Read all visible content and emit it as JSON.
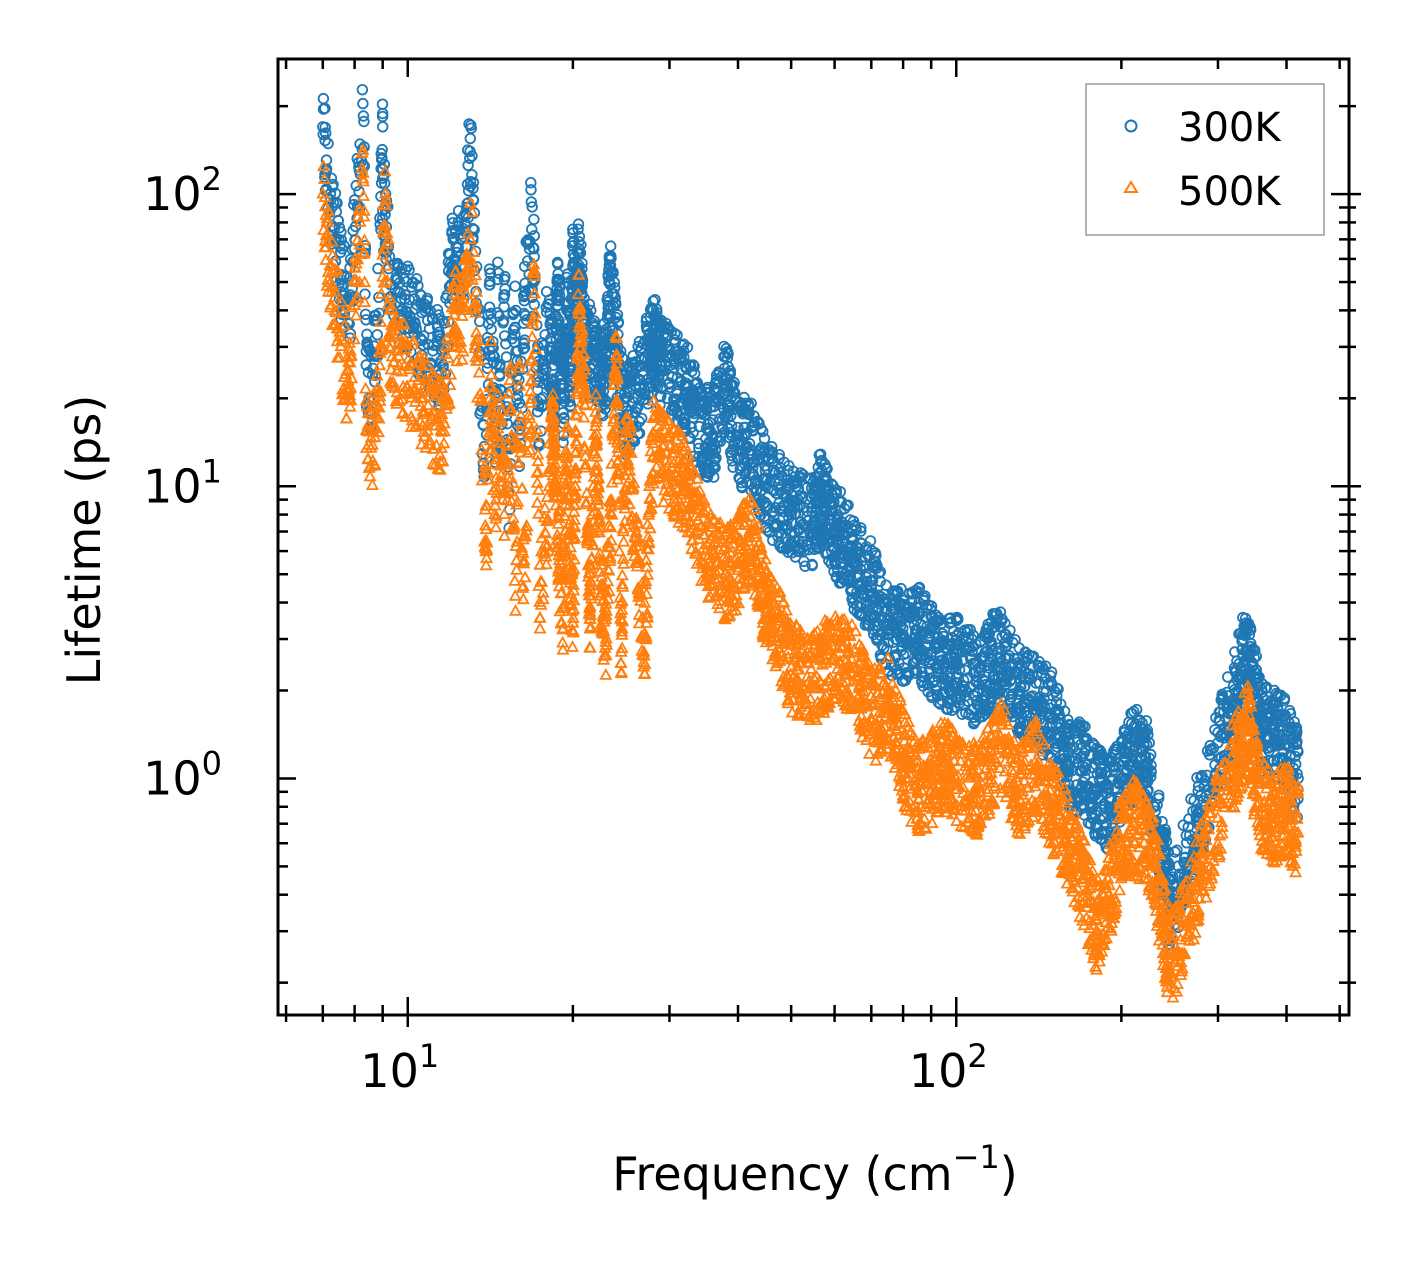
{
  "chart_data": {
    "type": "scatter",
    "title": "",
    "xlabel": "Frequency (cm",
    "xlabel_sup": "−1",
    "xlabel_end": ")",
    "ylabel": "Lifetime (ps)",
    "xscale": "log",
    "yscale": "log",
    "xlim": [
      5.8,
      520
    ],
    "ylim": [
      0.155,
      290
    ],
    "x_ticks": [
      {
        "value": 10,
        "base": "10",
        "exp": "1"
      },
      {
        "value": 100,
        "base": "10",
        "exp": "2"
      }
    ],
    "y_ticks": [
      {
        "value": 1,
        "base": "10",
        "exp": "0"
      },
      {
        "value": 10,
        "base": "10",
        "exp": "1"
      },
      {
        "value": 100,
        "base": "10",
        "exp": "2"
      }
    ],
    "legend_position": "top-right",
    "series": [
      {
        "name": "300K",
        "color": "#1f77b4",
        "marker": "circle",
        "points": [
          [
            7.0,
            170
          ],
          [
            7.1,
            120
          ],
          [
            7.8,
            36
          ],
          [
            8.3,
            185
          ],
          [
            8.4,
            26
          ],
          [
            8.5,
            20
          ],
          [
            8.8,
            33
          ],
          [
            9.0,
            170
          ],
          [
            9.0,
            88
          ],
          [
            9.1,
            89
          ],
          [
            9.3,
            49
          ],
          [
            11.6,
            26
          ],
          [
            12.1,
            70
          ],
          [
            12.2,
            55
          ],
          [
            12.5,
            70
          ],
          [
            12.7,
            61
          ],
          [
            12.8,
            90
          ],
          [
            13.0,
            155
          ],
          [
            13.8,
            11
          ],
          [
            14.1,
            41
          ],
          [
            14.3,
            28
          ],
          [
            14.5,
            13
          ],
          [
            14.6,
            51
          ],
          [
            14.8,
            13.5
          ],
          [
            15.0,
            51
          ],
          [
            15.2,
            13.5
          ],
          [
            15.3,
            7.2
          ],
          [
            15.5,
            32
          ],
          [
            15.7,
            35
          ],
          [
            16.0,
            15
          ],
          [
            16.3,
            39
          ],
          [
            16.8,
            94
          ],
          [
            17.0,
            61
          ],
          [
            16.9,
            51
          ],
          [
            17.3,
            19
          ],
          [
            17.6,
            24
          ],
          [
            17.8,
            33
          ],
          [
            18.2,
            30
          ],
          [
            18.5,
            21
          ],
          [
            18.8,
            51
          ],
          [
            19.2,
            20
          ],
          [
            19.5,
            40
          ],
          [
            19.8,
            25
          ],
          [
            20.0,
            57
          ],
          [
            20.3,
            35
          ],
          [
            20.5,
            65
          ],
          [
            21.0,
            30
          ],
          [
            22.0,
            28
          ],
          [
            22.6,
            23
          ],
          [
            23.0,
            27
          ],
          [
            23.4,
            49
          ],
          [
            24.0,
            29
          ],
          [
            25.0,
            17
          ],
          [
            26.5,
            22
          ],
          [
            28.0,
            32
          ],
          [
            28.5,
            29
          ],
          [
            29.0,
            26
          ],
          [
            32.0,
            22
          ],
          [
            34.0,
            16
          ],
          [
            36.0,
            15
          ],
          [
            38.0,
            22
          ],
          [
            40.0,
            14
          ],
          [
            42.0,
            14
          ],
          [
            45.0,
            10
          ],
          [
            50.0,
            8
          ],
          [
            55.0,
            7.5
          ],
          [
            56.0,
            8.8
          ],
          [
            57.0,
            9.1
          ],
          [
            58.0,
            8.2
          ],
          [
            60.0,
            7.0
          ],
          [
            62.0,
            6.5
          ],
          [
            65.0,
            5.5
          ],
          [
            70.0,
            4.5
          ],
          [
            75.0,
            3.2
          ],
          [
            80.0,
            3.1
          ],
          [
            85.0,
            3.2
          ],
          [
            90.0,
            2.7
          ],
          [
            95.0,
            2.4
          ],
          [
            100.0,
            2.5
          ],
          [
            110.0,
            2.1
          ],
          [
            115.0,
            2.5
          ],
          [
            120.0,
            2.6
          ],
          [
            130.0,
            2.0
          ],
          [
            140.0,
            1.8
          ],
          [
            150.0,
            1.6
          ],
          [
            160.0,
            1.1
          ],
          [
            170.0,
            1.1
          ],
          [
            180.0,
            0.9
          ],
          [
            190.0,
            0.8
          ],
          [
            200.0,
            1.0
          ],
          [
            210.0,
            1.2
          ],
          [
            220.0,
            1.2
          ],
          [
            230.0,
            0.8
          ],
          [
            240.0,
            0.5
          ],
          [
            245.0,
            0.35
          ],
          [
            320.0,
            1.8
          ],
          [
            330.0,
            2.4
          ],
          [
            340.0,
            2.6
          ],
          [
            350.0,
            2.0
          ],
          [
            360.0,
            1.5
          ],
          [
            380.0,
            1.4
          ],
          [
            400.0,
            1.3
          ],
          [
            420.0,
            1.0
          ]
        ]
      },
      {
        "name": "500K",
        "color": "#ff7f0e",
        "marker": "triangle",
        "points": [
          [
            7.0,
            100
          ],
          [
            7.1,
            72
          ],
          [
            7.8,
            21
          ],
          [
            8.3,
            110
          ],
          [
            8.4,
            15.5
          ],
          [
            8.5,
            11.5
          ],
          [
            8.9,
            19.5
          ],
          [
            9.0,
            52
          ],
          [
            9.1,
            100
          ],
          [
            9.3,
            29.5
          ],
          [
            11.5,
            15.5
          ],
          [
            12.2,
            41
          ],
          [
            12.4,
            33
          ],
          [
            12.6,
            40
          ],
          [
            12.8,
            52
          ],
          [
            13.0,
            93
          ],
          [
            13.9,
            6.5
          ],
          [
            14.0,
            10.5
          ],
          [
            14.2,
            24
          ],
          [
            14.4,
            8
          ],
          [
            14.6,
            15
          ],
          [
            14.9,
            12.5
          ],
          [
            15.0,
            8
          ],
          [
            15.4,
            18
          ],
          [
            15.7,
            4.2
          ],
          [
            16.0,
            22
          ],
          [
            16.2,
            5.5
          ],
          [
            16.4,
            6.7
          ],
          [
            16.8,
            23
          ],
          [
            17.0,
            55
          ],
          [
            17.4,
            4
          ],
          [
            17.8,
            6.3
          ],
          [
            18.3,
            16
          ],
          [
            18.5,
            13
          ],
          [
            18.8,
            6.5
          ],
          [
            19.2,
            3.8
          ],
          [
            19.5,
            12
          ],
          [
            20.0,
            3.4
          ],
          [
            20.2,
            11
          ],
          [
            20.5,
            40
          ],
          [
            21.0,
            19
          ],
          [
            21.5,
            3.5
          ],
          [
            22.0,
            16
          ],
          [
            22.5,
            4.3
          ],
          [
            23.0,
            3
          ],
          [
            24.0,
            28
          ],
          [
            24.5,
            2.7
          ],
          [
            25.0,
            17
          ],
          [
            27.0,
            3
          ],
          [
            28.0,
            14
          ],
          [
            30.0,
            12
          ],
          [
            32.0,
            10
          ],
          [
            35.0,
            6
          ],
          [
            38.0,
            5
          ],
          [
            40.0,
            5.5
          ],
          [
            42.0,
            7
          ],
          [
            45.0,
            4
          ],
          [
            48.0,
            3
          ],
          [
            50.0,
            2.4
          ],
          [
            55.0,
            2.2
          ],
          [
            60.0,
            2.6
          ],
          [
            65.0,
            2.4
          ],
          [
            70.0,
            1.6
          ],
          [
            75.0,
            1.8
          ],
          [
            80.0,
            1.2
          ],
          [
            85.0,
            0.9
          ],
          [
            90.0,
            1.0
          ],
          [
            95.0,
            1.1
          ],
          [
            100.0,
            1.0
          ],
          [
            110.0,
            0.9
          ],
          [
            120.0,
            1.3
          ],
          [
            130.0,
            0.9
          ],
          [
            140.0,
            1.1
          ],
          [
            150.0,
            0.8
          ],
          [
            160.0,
            0.6
          ],
          [
            170.0,
            0.45
          ],
          [
            180.0,
            0.3
          ],
          [
            190.0,
            0.4
          ],
          [
            200.0,
            0.6
          ],
          [
            210.0,
            0.7
          ],
          [
            220.0,
            0.6
          ],
          [
            230.0,
            0.5
          ],
          [
            240.0,
            0.3
          ],
          [
            245.0,
            0.22
          ],
          [
            320.0,
            1.1
          ],
          [
            330.0,
            1.3
          ],
          [
            340.0,
            1.5
          ],
          [
            350.0,
            1.0
          ],
          [
            360.0,
            0.8
          ],
          [
            380.0,
            0.7
          ],
          [
            400.0,
            0.8
          ],
          [
            420.0,
            0.65
          ]
        ]
      }
    ]
  }
}
